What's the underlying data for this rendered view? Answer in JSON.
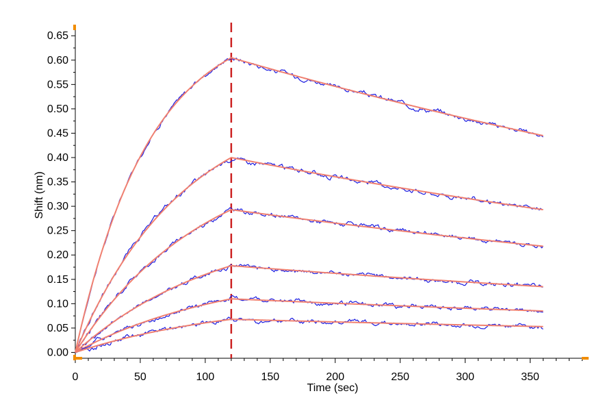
{
  "chart_data": {
    "type": "line",
    "title": "",
    "xlabel": "Time (sec)",
    "ylabel": "Shift (nm)",
    "xlim": [
      0,
      395
    ],
    "ylim": [
      -0.012,
      0.67
    ],
    "x_ticks": [
      0,
      50,
      100,
      150,
      200,
      250,
      300,
      350
    ],
    "x_tick_labels": [
      "0",
      "50",
      "100",
      "150",
      "200",
      "250",
      "300",
      "350"
    ],
    "y_ticks": [
      0.0,
      0.05,
      0.1,
      0.15,
      0.2,
      0.25,
      0.3,
      0.35,
      0.4,
      0.45,
      0.5,
      0.55,
      0.6,
      0.65
    ],
    "y_tick_labels": [
      "0.00",
      "0.05",
      "0.10",
      "0.15",
      "0.20",
      "0.25",
      "0.30",
      "0.35",
      "0.40",
      "0.45",
      "0.50",
      "0.55",
      "0.60",
      "0.65"
    ],
    "grid": false,
    "legend": "none",
    "association_end_time": 120,
    "end_time": 360,
    "colors": {
      "measured": "#1a1ae0",
      "fit": "#f08070",
      "marker_line": "#cc2222",
      "axis_marker": "#f08c00",
      "axis": "#000000"
    },
    "series": [
      {
        "peak": 0.605,
        "end": 0.445,
        "kobs": 0.0175
      },
      {
        "peak": 0.4,
        "end": 0.293,
        "kobs": 0.012
      },
      {
        "peak": 0.293,
        "end": 0.218,
        "kobs": 0.01
      },
      {
        "peak": 0.178,
        "end": 0.135,
        "kobs": 0.009
      },
      {
        "peak": 0.11,
        "end": 0.085,
        "kobs": 0.0085
      },
      {
        "peak": 0.068,
        "end": 0.053,
        "kobs": 0.008
      }
    ]
  }
}
